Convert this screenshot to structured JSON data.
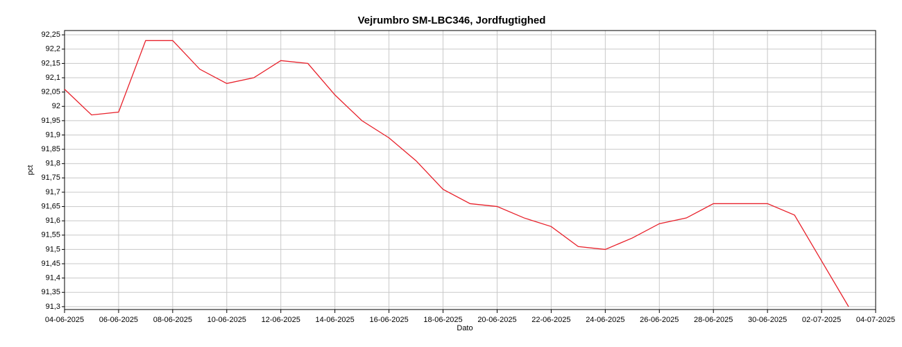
{
  "chart_data": {
    "type": "line",
    "title": "Vejrumbro SM-LBC346, Jordfugtighed",
    "x_label": "Dato",
    "y_label": "pct",
    "x": [
      "04-06-2025",
      "05-06-2025",
      "06-06-2025",
      "07-06-2025",
      "08-06-2025",
      "09-06-2025",
      "10-06-2025",
      "11-06-2025",
      "12-06-2025",
      "13-06-2025",
      "14-06-2025",
      "15-06-2025",
      "16-06-2025",
      "17-06-2025",
      "18-06-2025",
      "19-06-2025",
      "20-06-2025",
      "21-06-2025",
      "22-06-2025",
      "23-06-2025",
      "24-06-2025",
      "25-06-2025",
      "26-06-2025",
      "27-06-2025",
      "28-06-2025",
      "29-06-2025",
      "30-06-2025",
      "01-07-2025",
      "02-07-2025",
      "03-07-2025"
    ],
    "series": [
      {
        "name": "pct",
        "color": "#e8202a",
        "values": [
          92.06,
          91.97,
          91.98,
          92.23,
          92.23,
          92.13,
          92.08,
          92.1,
          92.16,
          92.15,
          92.04,
          91.95,
          91.89,
          91.81,
          91.71,
          91.66,
          91.65,
          91.61,
          91.58,
          91.51,
          91.5,
          91.54,
          91.59,
          91.61,
          91.66,
          91.66,
          91.66,
          91.62,
          91.46,
          91.3
        ]
      }
    ],
    "xlim": [
      "04-06-2025",
      "04-07-2025"
    ],
    "xticks": [
      "04-06-2025",
      "06-06-2025",
      "08-06-2025",
      "10-06-2025",
      "12-06-2025",
      "14-06-2025",
      "16-06-2025",
      "18-06-2025",
      "20-06-2025",
      "22-06-2025",
      "24-06-2025",
      "26-06-2025",
      "28-06-2025",
      "30-06-2025",
      "02-07-2025",
      "04-07-2025"
    ],
    "ylim": [
      91.29,
      92.265
    ],
    "yticks": [
      {
        "value": 91.3,
        "label": "91,3"
      },
      {
        "value": 91.35,
        "label": "91,35"
      },
      {
        "value": 91.4,
        "label": "91,4"
      },
      {
        "value": 91.45,
        "label": "91,45"
      },
      {
        "value": 91.5,
        "label": "91,5"
      },
      {
        "value": 91.55,
        "label": "91,55"
      },
      {
        "value": 91.6,
        "label": "91,6"
      },
      {
        "value": 91.65,
        "label": "91,65"
      },
      {
        "value": 91.7,
        "label": "91,7"
      },
      {
        "value": 91.75,
        "label": "91,75"
      },
      {
        "value": 91.8,
        "label": "91,8"
      },
      {
        "value": 91.85,
        "label": "91,85"
      },
      {
        "value": 91.9,
        "label": "91,9"
      },
      {
        "value": 91.95,
        "label": "91,95"
      },
      92,
      {
        "value": 92.05,
        "label": "92,05"
      },
      {
        "value": 92.1,
        "label": "92,1"
      },
      {
        "value": 92.15,
        "label": "92,15"
      },
      {
        "value": 92.2,
        "label": "92,2"
      },
      {
        "value": 92.25,
        "label": "92,25"
      }
    ],
    "grid": true
  }
}
